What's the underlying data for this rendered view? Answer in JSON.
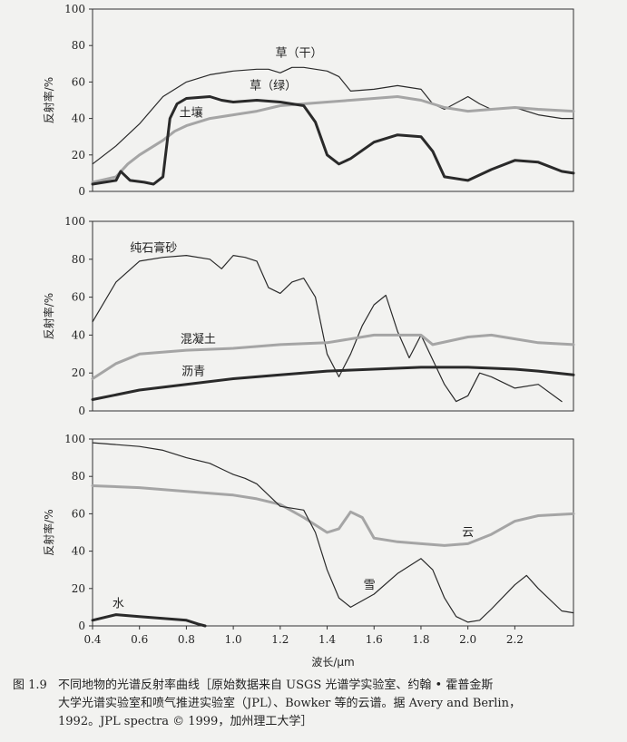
{
  "chart_data": [
    {
      "type": "line",
      "ylabel": "反射率/%",
      "ylim": [
        0,
        100
      ],
      "yticks": [
        0,
        20,
        40,
        60,
        80,
        100
      ],
      "xlim": [
        0.4,
        2.45
      ],
      "grid": false,
      "series": [
        {
          "name": "草（干）",
          "color": "#2a2a2a",
          "stroke": "thin",
          "points": [
            [
              0.4,
              15
            ],
            [
              0.5,
              25
            ],
            [
              0.6,
              37
            ],
            [
              0.7,
              52
            ],
            [
              0.8,
              60
            ],
            [
              0.9,
              64
            ],
            [
              1.0,
              66
            ],
            [
              1.1,
              67
            ],
            [
              1.15,
              67
            ],
            [
              1.2,
              65
            ],
            [
              1.25,
              68
            ],
            [
              1.3,
              68
            ],
            [
              1.4,
              66
            ],
            [
              1.45,
              63
            ],
            [
              1.5,
              55
            ],
            [
              1.6,
              56
            ],
            [
              1.7,
              58
            ],
            [
              1.8,
              56
            ],
            [
              1.85,
              48
            ],
            [
              1.9,
              45
            ],
            [
              2.0,
              52
            ],
            [
              2.05,
              48
            ],
            [
              2.1,
              45
            ],
            [
              2.2,
              46
            ],
            [
              2.3,
              42
            ],
            [
              2.4,
              40
            ],
            [
              2.45,
              40
            ]
          ]
        },
        {
          "name": "草（绿）",
          "color": "#a5a5a5",
          "stroke": "thick",
          "points": [
            [
              0.4,
              5
            ],
            [
              0.5,
              8
            ],
            [
              0.55,
              15
            ],
            [
              0.6,
              20
            ],
            [
              0.7,
              28
            ],
            [
              0.75,
              33
            ],
            [
              0.8,
              36
            ],
            [
              0.9,
              40
            ],
            [
              1.0,
              42
            ],
            [
              1.1,
              44
            ],
            [
              1.2,
              47
            ],
            [
              1.3,
              48
            ],
            [
              1.4,
              49
            ],
            [
              1.5,
              50
            ],
            [
              1.6,
              51
            ],
            [
              1.7,
              52
            ],
            [
              1.8,
              50
            ],
            [
              1.9,
              46
            ],
            [
              2.0,
              44
            ],
            [
              2.1,
              45
            ],
            [
              2.2,
              46
            ],
            [
              2.3,
              45
            ],
            [
              2.45,
              44
            ]
          ]
        },
        {
          "name": "土壤",
          "color": "#2a2a2a",
          "stroke": "thick",
          "points": [
            [
              0.4,
              4
            ],
            [
              0.5,
              6
            ],
            [
              0.52,
              11
            ],
            [
              0.56,
              6
            ],
            [
              0.62,
              5
            ],
            [
              0.66,
              4
            ],
            [
              0.7,
              8
            ],
            [
              0.73,
              40
            ],
            [
              0.76,
              48
            ],
            [
              0.8,
              51
            ],
            [
              0.9,
              52
            ],
            [
              0.95,
              50
            ],
            [
              1.0,
              49
            ],
            [
              1.1,
              50
            ],
            [
              1.2,
              49
            ],
            [
              1.25,
              48
            ],
            [
              1.3,
              47
            ],
            [
              1.35,
              38
            ],
            [
              1.4,
              20
            ],
            [
              1.45,
              15
            ],
            [
              1.5,
              18
            ],
            [
              1.6,
              27
            ],
            [
              1.7,
              31
            ],
            [
              1.8,
              30
            ],
            [
              1.85,
              22
            ],
            [
              1.9,
              8
            ],
            [
              2.0,
              6
            ],
            [
              2.1,
              12
            ],
            [
              2.2,
              17
            ],
            [
              2.3,
              16
            ],
            [
              2.4,
              11
            ],
            [
              2.45,
              10
            ]
          ]
        }
      ],
      "labels": [
        "草（干）",
        "草（绿）",
        "土壤"
      ]
    },
    {
      "type": "line",
      "ylabel": "反射率/%",
      "ylim": [
        0,
        100
      ],
      "yticks": [
        0,
        20,
        40,
        60,
        80,
        100
      ],
      "xlim": [
        0.4,
        2.45
      ],
      "grid": false,
      "series": [
        {
          "name": "纯石膏砂",
          "color": "#2a2a2a",
          "stroke": "thin",
          "points": [
            [
              0.4,
              47
            ],
            [
              0.5,
              68
            ],
            [
              0.6,
              79
            ],
            [
              0.7,
              81
            ],
            [
              0.8,
              82
            ],
            [
              0.9,
              80
            ],
            [
              0.95,
              75
            ],
            [
              1.0,
              82
            ],
            [
              1.05,
              81
            ],
            [
              1.1,
              79
            ],
            [
              1.15,
              65
            ],
            [
              1.2,
              62
            ],
            [
              1.25,
              68
            ],
            [
              1.3,
              70
            ],
            [
              1.35,
              60
            ],
            [
              1.4,
              30
            ],
            [
              1.45,
              18
            ],
            [
              1.5,
              30
            ],
            [
              1.55,
              45
            ],
            [
              1.6,
              56
            ],
            [
              1.65,
              61
            ],
            [
              1.7,
              42
            ],
            [
              1.75,
              28
            ],
            [
              1.8,
              40
            ],
            [
              1.85,
              27
            ],
            [
              1.9,
              14
            ],
            [
              1.95,
              5
            ],
            [
              2.0,
              8
            ],
            [
              2.05,
              20
            ],
            [
              2.1,
              18
            ],
            [
              2.2,
              12
            ],
            [
              2.3,
              14
            ],
            [
              2.4,
              5
            ]
          ]
        },
        {
          "name": "混凝土",
          "color": "#a5a5a5",
          "stroke": "thick",
          "points": [
            [
              0.4,
              17
            ],
            [
              0.5,
              25
            ],
            [
              0.6,
              30
            ],
            [
              0.8,
              32
            ],
            [
              1.0,
              33
            ],
            [
              1.2,
              35
            ],
            [
              1.4,
              36
            ],
            [
              1.6,
              40
            ],
            [
              1.8,
              40
            ],
            [
              1.85,
              35
            ],
            [
              2.0,
              39
            ],
            [
              2.1,
              40
            ],
            [
              2.2,
              38
            ],
            [
              2.3,
              36
            ],
            [
              2.45,
              35
            ]
          ]
        },
        {
          "name": "沥青",
          "color": "#2a2a2a",
          "stroke": "thick",
          "points": [
            [
              0.4,
              6
            ],
            [
              0.6,
              11
            ],
            [
              0.8,
              14
            ],
            [
              1.0,
              17
            ],
            [
              1.2,
              19
            ],
            [
              1.4,
              21
            ],
            [
              1.6,
              22
            ],
            [
              1.8,
              23
            ],
            [
              2.0,
              23
            ],
            [
              2.2,
              22
            ],
            [
              2.3,
              21
            ],
            [
              2.45,
              19
            ]
          ]
        }
      ],
      "labels": [
        "纯石膏砂",
        "混凝土",
        "沥青"
      ]
    },
    {
      "type": "line",
      "ylabel": "反射率/%",
      "xlabel": "波长/μm",
      "ylim": [
        0,
        100
      ],
      "yticks": [
        0,
        20,
        40,
        60,
        80,
        100
      ],
      "xlim": [
        0.4,
        2.45
      ],
      "xticks": [
        0.4,
        0.6,
        0.8,
        1.0,
        1.2,
        1.4,
        1.6,
        1.8,
        2.0,
        2.2
      ],
      "grid": false,
      "series": [
        {
          "name": "云",
          "color": "#a5a5a5",
          "stroke": "thick",
          "points": [
            [
              0.4,
              75
            ],
            [
              0.6,
              74
            ],
            [
              0.8,
              72
            ],
            [
              1.0,
              70
            ],
            [
              1.1,
              68
            ],
            [
              1.2,
              65
            ],
            [
              1.3,
              58
            ],
            [
              1.4,
              50
            ],
            [
              1.45,
              52
            ],
            [
              1.5,
              61
            ],
            [
              1.55,
              58
            ],
            [
              1.6,
              47
            ],
            [
              1.7,
              45
            ],
            [
              1.8,
              44
            ],
            [
              1.9,
              43
            ],
            [
              2.0,
              44
            ],
            [
              2.1,
              49
            ],
            [
              2.2,
              56
            ],
            [
              2.3,
              59
            ],
            [
              2.45,
              60
            ]
          ]
        },
        {
          "name": "雪",
          "color": "#2a2a2a",
          "stroke": "thin",
          "points": [
            [
              0.4,
              98
            ],
            [
              0.6,
              96
            ],
            [
              0.7,
              94
            ],
            [
              0.8,
              90
            ],
            [
              0.9,
              87
            ],
            [
              0.95,
              84
            ],
            [
              1.0,
              81
            ],
            [
              1.05,
              79
            ],
            [
              1.1,
              76
            ],
            [
              1.15,
              70
            ],
            [
              1.2,
              64
            ],
            [
              1.3,
              62
            ],
            [
              1.35,
              50
            ],
            [
              1.4,
              30
            ],
            [
              1.45,
              15
            ],
            [
              1.5,
              10
            ],
            [
              1.6,
              17
            ],
            [
              1.7,
              28
            ],
            [
              1.8,
              36
            ],
            [
              1.85,
              30
            ],
            [
              1.9,
              15
            ],
            [
              1.95,
              5
            ],
            [
              2.0,
              2
            ],
            [
              2.05,
              3
            ],
            [
              2.1,
              9
            ],
            [
              2.2,
              22
            ],
            [
              2.25,
              27
            ],
            [
              2.3,
              20
            ],
            [
              2.4,
              8
            ],
            [
              2.45,
              7
            ]
          ]
        },
        {
          "name": "水",
          "color": "#2a2a2a",
          "stroke": "thick",
          "points": [
            [
              0.4,
              3
            ],
            [
              0.5,
              6
            ],
            [
              0.6,
              5
            ],
            [
              0.7,
              4
            ],
            [
              0.8,
              3
            ],
            [
              0.85,
              1
            ],
            [
              0.88,
              0
            ]
          ]
        }
      ],
      "labels": [
        "云",
        "雪",
        "水"
      ]
    }
  ],
  "caption": {
    "number": "图 1.9",
    "lines": [
      "不同地物的光谱反射率曲线［原始数据来自 USGS 光谱学实验室、约翰 • 霍普金斯",
      "大学光谱实验室和喷气推进实验室（JPL）、Bowker 等的云谱。据 Avery and Berlin，",
      "1992。JPL spectra © 1999，加州理工大学］"
    ]
  }
}
